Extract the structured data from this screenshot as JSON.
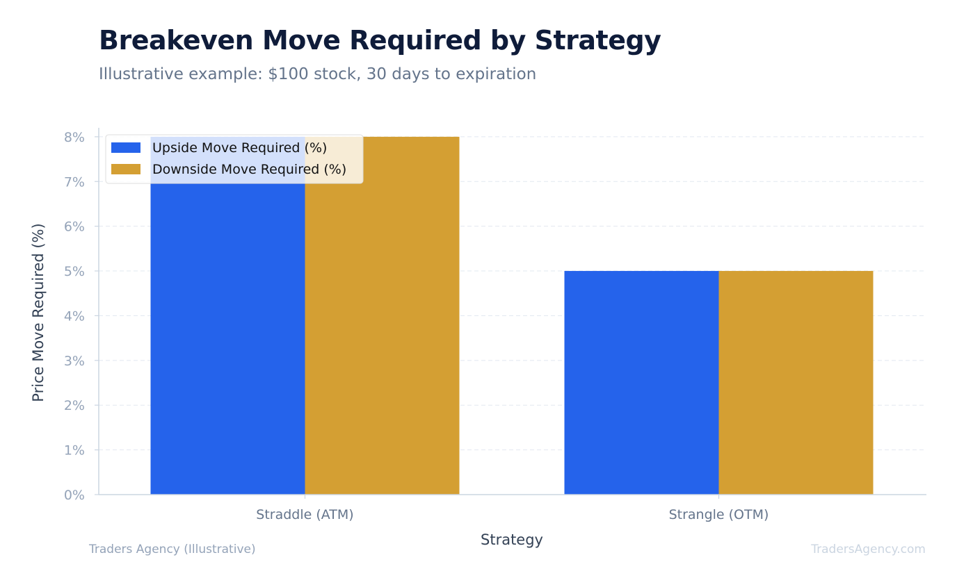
{
  "chart_data": {
    "type": "bar",
    "title": "Breakeven Move Required by Strategy",
    "subtitle": "Illustrative example: $100 stock, 30 days to expiration",
    "xlabel": "Strategy",
    "ylabel": "Price Move Required (%)",
    "categories": [
      "Straddle (ATM)",
      "Strangle (OTM)"
    ],
    "series": [
      {
        "name": "Upside Move Required (%)",
        "values": [
          8,
          5
        ],
        "color": "#2563eb"
      },
      {
        "name": "Downside Move Required (%)",
        "values": [
          8,
          5
        ],
        "color": "#d49f33"
      }
    ],
    "ylim": [
      0,
      8.2
    ],
    "yticks": [
      0,
      1,
      2,
      3,
      4,
      5,
      6,
      7,
      8
    ],
    "ytick_labels": [
      "0%",
      "1%",
      "2%",
      "3%",
      "4%",
      "5%",
      "6%",
      "7%",
      "8%"
    ],
    "grid": true,
    "legend_position": "top-left"
  },
  "footer": {
    "source": "Traders Agency (Illustrative)",
    "watermark": "TradersAgency.com"
  },
  "colors": {
    "title": "#0f1c3a",
    "subtitle": "#64748b",
    "axis": "#cbd5e1",
    "grid": "#e2e8f0",
    "watermark": "#cbd5e1",
    "source": "#94a3b8"
  }
}
